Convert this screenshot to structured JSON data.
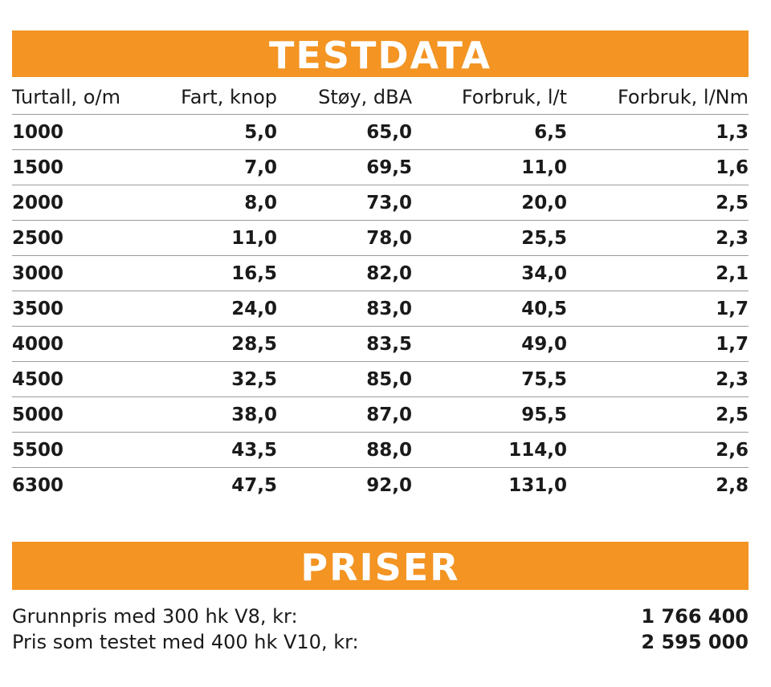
{
  "testdata": {
    "title": "TESTDATA",
    "headers": [
      "Turtall, o/m",
      "Fart, knop",
      "Støy, dBA",
      "Forbruk, l/t",
      "Forbruk, l/Nm"
    ],
    "rows": [
      [
        "1000",
        "5,0",
        "65,0",
        "6,5",
        "1,3"
      ],
      [
        "1500",
        "7,0",
        "69,5",
        "11,0",
        "1,6"
      ],
      [
        "2000",
        "8,0",
        "73,0",
        "20,0",
        "2,5"
      ],
      [
        "2500",
        "11,0",
        "78,0",
        "25,5",
        "2,3"
      ],
      [
        "3000",
        "16,5",
        "82,0",
        "34,0",
        "2,1"
      ],
      [
        "3500",
        "24,0",
        "83,0",
        "40,5",
        "1,7"
      ],
      [
        "4000",
        "28,5",
        "83,5",
        "49,0",
        "1,7"
      ],
      [
        "4500",
        "32,5",
        "85,0",
        "75,5",
        "2,3"
      ],
      [
        "5000",
        "38,0",
        "87,0",
        "95,5",
        "2,5"
      ],
      [
        "5500",
        "43,5",
        "88,0",
        "114,0",
        "2,6"
      ],
      [
        "6300",
        "47,5",
        "92,0",
        "131,0",
        "2,8"
      ]
    ]
  },
  "priser": {
    "title": "PRISER",
    "items": [
      {
        "label": "Grunnpris med 300 hk V8, kr:",
        "value": "1 766 400"
      },
      {
        "label": "Pris som testet med 400 hk V10, kr:",
        "value": "2 595 000"
      }
    ]
  },
  "colors": {
    "accent": "#f39423",
    "text": "#1a1a1a",
    "rule": "#9a9a9a"
  }
}
